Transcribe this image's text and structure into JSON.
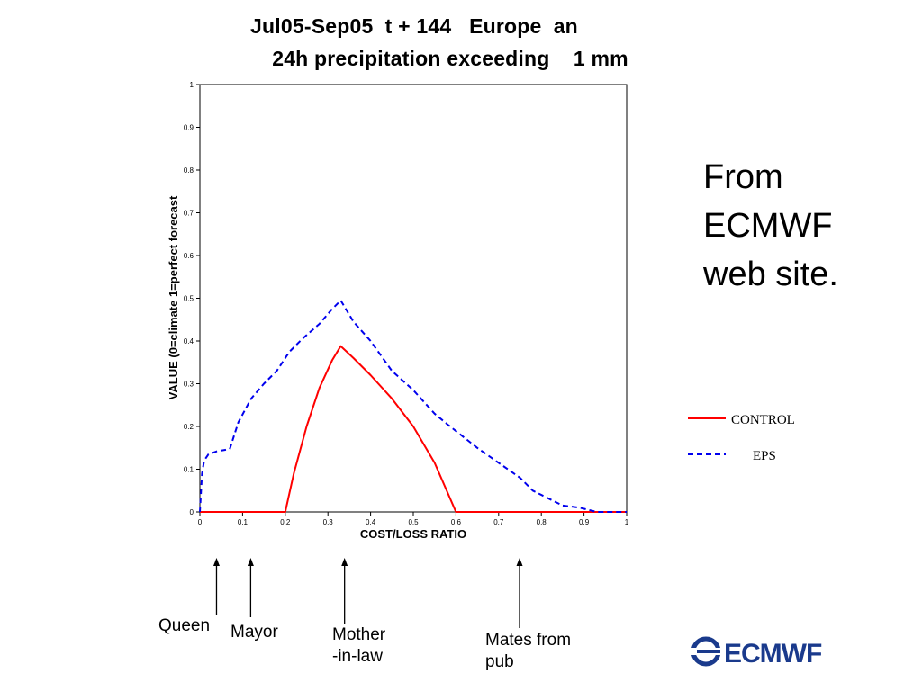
{
  "chart_data": {
    "type": "line",
    "title": [
      "Jul05-Sep05  t + 144   Europe  an",
      "24h precipitation exceeding    1 mm"
    ],
    "xlabel": "COST/LOSS RATIO",
    "ylabel": "VALUE (0=climate 1=perfect forecast",
    "xlim": [
      0,
      1
    ],
    "ylim": [
      0,
      1
    ],
    "xticks": [
      0,
      0.1,
      0.2,
      0.3,
      0.4,
      0.5,
      0.6,
      0.7,
      0.8,
      0.9,
      1
    ],
    "xtick_labels": [
      "0",
      "0.1",
      "0.2",
      "0.3",
      "0.4",
      "0.5",
      "0.6",
      "0.7",
      "0.8",
      "0.9",
      "1"
    ],
    "yticks": [
      0,
      0.1,
      0.2,
      0.3,
      0.4,
      0.5,
      0.6,
      0.7,
      0.8,
      0.9,
      1
    ],
    "ytick_labels": [
      "0",
      "0.1",
      "0.2",
      "0.3",
      "0.4",
      "0.5",
      "0.6",
      "0.7",
      "0.8",
      "0.9",
      "1"
    ],
    "grid": false,
    "legend_placement": "right",
    "series": [
      {
        "name": "CONTROL",
        "color": "#ff0000",
        "style": "solid",
        "points": [
          [
            0,
            0
          ],
          [
            0.2,
            0
          ],
          [
            0.22,
            0.09
          ],
          [
            0.25,
            0.2
          ],
          [
            0.28,
            0.29
          ],
          [
            0.31,
            0.355
          ],
          [
            0.33,
            0.388
          ],
          [
            0.36,
            0.36
          ],
          [
            0.4,
            0.32
          ],
          [
            0.45,
            0.265
          ],
          [
            0.5,
            0.2
          ],
          [
            0.55,
            0.115
          ],
          [
            0.6,
            0
          ],
          [
            1,
            0
          ]
        ]
      },
      {
        "name": "EPS",
        "color": "#0000ee",
        "style": "dashed",
        "points": [
          [
            0,
            0
          ],
          [
            0.005,
            0.09
          ],
          [
            0.01,
            0.12
          ],
          [
            0.02,
            0.135
          ],
          [
            0.04,
            0.142
          ],
          [
            0.07,
            0.147
          ],
          [
            0.09,
            0.21
          ],
          [
            0.12,
            0.265
          ],
          [
            0.15,
            0.3
          ],
          [
            0.18,
            0.33
          ],
          [
            0.21,
            0.375
          ],
          [
            0.24,
            0.405
          ],
          [
            0.28,
            0.44
          ],
          [
            0.31,
            0.475
          ],
          [
            0.33,
            0.495
          ],
          [
            0.36,
            0.445
          ],
          [
            0.4,
            0.4
          ],
          [
            0.45,
            0.33
          ],
          [
            0.5,
            0.285
          ],
          [
            0.55,
            0.23
          ],
          [
            0.58,
            0.205
          ],
          [
            0.65,
            0.15
          ],
          [
            0.7,
            0.115
          ],
          [
            0.75,
            0.08
          ],
          [
            0.78,
            0.05
          ],
          [
            0.81,
            0.035
          ],
          [
            0.85,
            0.015
          ],
          [
            0.89,
            0.01
          ],
          [
            0.93,
            0
          ],
          [
            1,
            0
          ]
        ]
      }
    ]
  },
  "side_note": [
    "From",
    "ECMWF",
    "web site."
  ],
  "arrows": [
    {
      "x": 0.02,
      "lines": [
        "Queen"
      ]
    },
    {
      "x": 0.1,
      "lines": [
        "Mayor"
      ]
    },
    {
      "x": 0.32,
      "lines": [
        "Mother",
        "-in-law"
      ]
    },
    {
      "x": 0.73,
      "lines": [
        "Mates from",
        "pub"
      ]
    }
  ],
  "logo_text": "ECMWF"
}
